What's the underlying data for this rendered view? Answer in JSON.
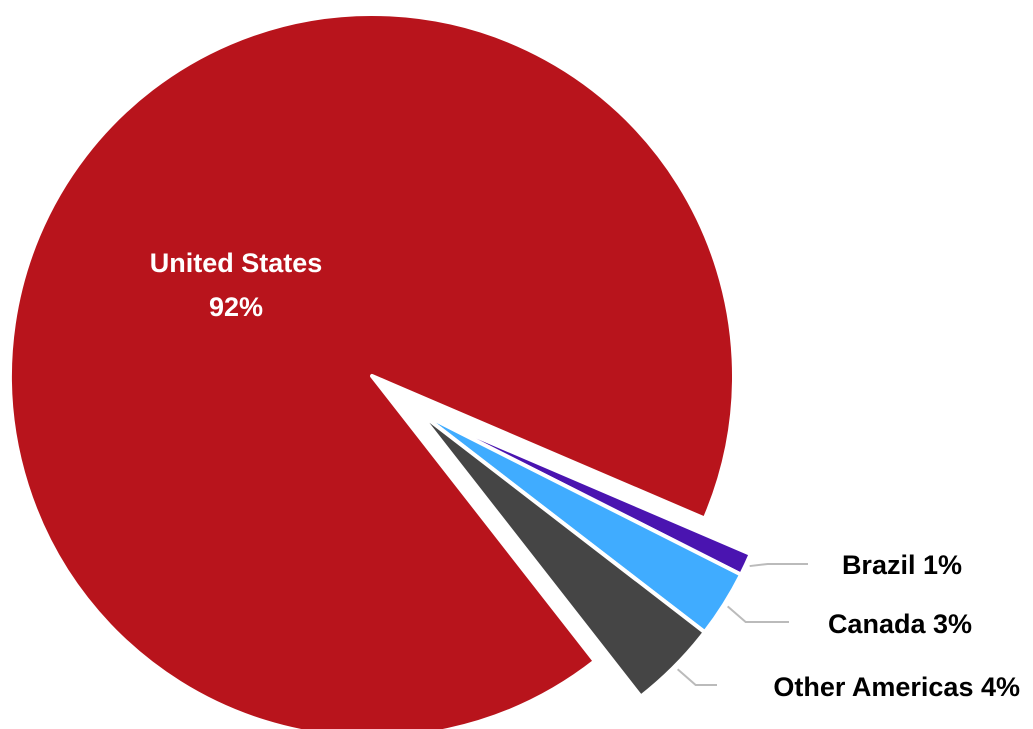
{
  "chart_data": {
    "type": "pie",
    "title": "",
    "slices": [
      {
        "label": "United States",
        "value": 92,
        "value_label": "92%",
        "color": "#b8141c",
        "label_position": "inside"
      },
      {
        "label": "Brazil",
        "value": 1,
        "value_label": "Brazil 1%",
        "color": "#4a14b0",
        "label_position": "outside"
      },
      {
        "label": "Canada",
        "value": 3,
        "value_label": "Canada 3%",
        "color": "#40acff",
        "label_position": "outside"
      },
      {
        "label": "Other Americas",
        "value": 4,
        "value_label": "Other Americas 4%",
        "color": "#454545",
        "label_position": "outside"
      }
    ],
    "legend": false,
    "exploded_slices": [
      "Brazil",
      "Canada",
      "Other Americas"
    ]
  }
}
